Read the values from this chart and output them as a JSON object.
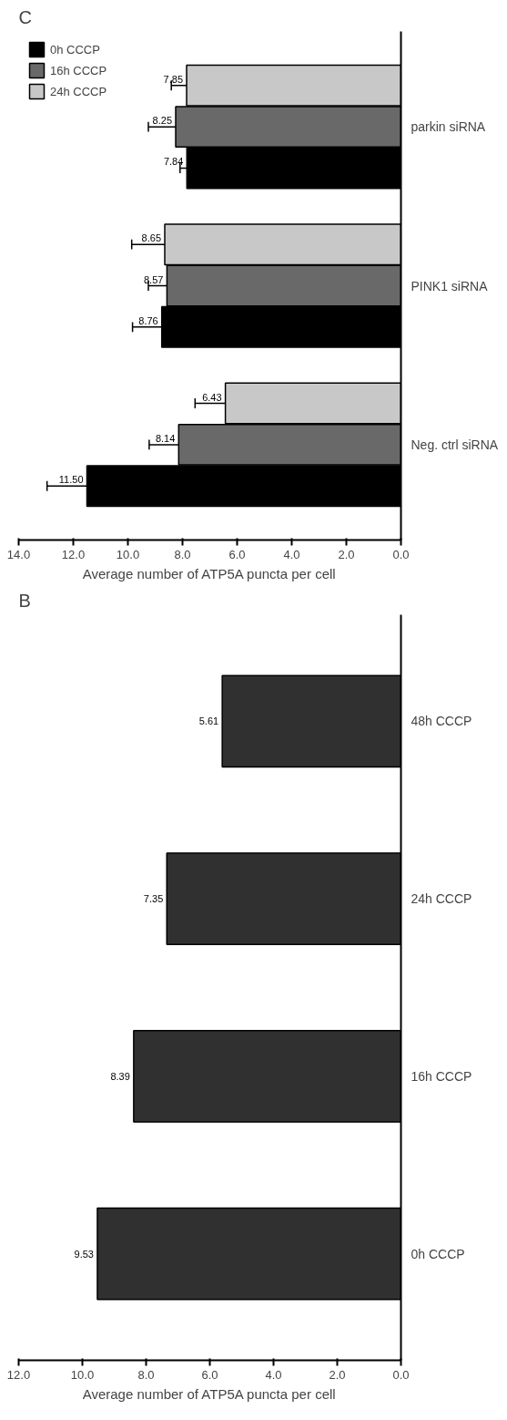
{
  "chart_data": [
    {
      "type": "bar",
      "title": "C",
      "orientation": "horizontal",
      "xlabel": "Average number of ATP5A puncta per cell",
      "categories": [
        "parkin siRNA",
        "PINK1 siRNA",
        "Neg. ctrl siRNA"
      ],
      "series": [
        {
          "name": "24h CCCP",
          "color": "#c8c8c8",
          "values": [
            7.85,
            8.65,
            6.43
          ],
          "errors": [
            [
              7.85,
              8.41
            ],
            [
              8.65,
              9.86
            ],
            [
              6.43,
              7.54
            ]
          ],
          "value_labels": [
            "7.85",
            "8.65",
            "6.43"
          ]
        },
        {
          "name": "16h CCCP",
          "color": "#696969",
          "values": [
            8.25,
            8.57,
            8.14
          ],
          "errors": [
            [
              8.25,
              9.25
            ],
            [
              8.57,
              9.25
            ],
            [
              8.14,
              9.22
            ]
          ],
          "value_labels": [
            "8.25",
            "8.57",
            "8.14"
          ]
        },
        {
          "name": "0h CCCP",
          "color": "#000000",
          "values": [
            7.84,
            8.76,
            11.5
          ],
          "errors": [
            [
              7.84,
              8.09
            ],
            [
              8.76,
              9.83
            ],
            [
              11.5,
              12.96
            ]
          ],
          "value_labels": [
            "7.84",
            "8.76",
            "11.50"
          ]
        }
      ],
      "xlim": [
        14,
        0
      ],
      "xticks": [
        {
          "value": 14,
          "label": "14.0"
        },
        {
          "value": 12,
          "label": "12.0"
        },
        {
          "value": 10,
          "label": "10.0"
        },
        {
          "value": 8,
          "label": "8.0"
        },
        {
          "value": 6,
          "label": "6.0"
        },
        {
          "value": 4,
          "label": "4.0"
        },
        {
          "value": 2,
          "label": "2.0"
        },
        {
          "value": 0,
          "label": "0.0"
        }
      ],
      "legend": "top left",
      "grid": false
    },
    {
      "type": "bar",
      "title": "B",
      "orientation": "horizontal",
      "xlabel": "Average number of ATP5A puncta per cell",
      "categories": [
        "48h CCCP",
        "24h CCCP",
        "16h CCCP",
        "0h CCCP"
      ],
      "values": [
        5.61,
        7.35,
        8.39,
        9.53
      ],
      "color": "#303030",
      "data_labels": true,
      "xlim": [
        12,
        0
      ],
      "xticks": [
        {
          "value": 12,
          "label": "12.0"
        },
        {
          "value": 10,
          "label": "10.0"
        },
        {
          "value": 8,
          "label": "8.0"
        },
        {
          "value": 6,
          "label": "6.0"
        },
        {
          "value": 4,
          "label": "4.0"
        },
        {
          "value": 2,
          "label": "2.0"
        },
        {
          "value": 0,
          "label": "0.0"
        }
      ],
      "grid": false
    }
  ]
}
